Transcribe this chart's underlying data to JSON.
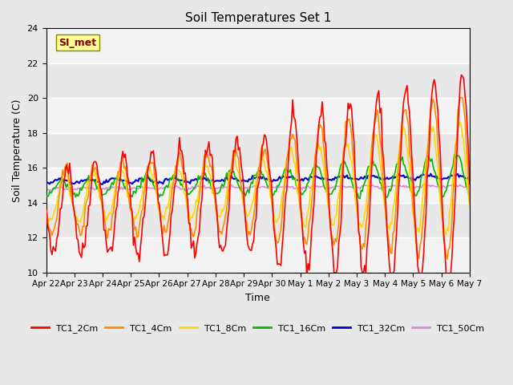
{
  "title": "Soil Temperatures Set 1",
  "xlabel": "Time",
  "ylabel": "Soil Temperature (C)",
  "ylim": [
    10,
    24
  ],
  "yticks": [
    10,
    12,
    14,
    16,
    18,
    20,
    22,
    24
  ],
  "background_color": "#e8e8e8",
  "plot_bg_color": "#e8e8e8",
  "annotation_text": "SI_met",
  "annotation_color": "#8B0000",
  "annotation_bg": "#FFFF99",
  "series_colors": {
    "TC1_2Cm": "#FF0000",
    "TC1_4Cm": "#FF8C00",
    "TC1_8Cm": "#FFD700",
    "TC1_16Cm": "#00BB00",
    "TC1_32Cm": "#0000CC",
    "TC1_50Cm": "#DD88DD"
  },
  "line_width": 1.2,
  "n_points": 360,
  "n_days": 15,
  "x_tick_labels": [
    "Apr 22",
    "Apr 23",
    "Apr 24",
    "Apr 25",
    "Apr 26",
    "Apr 27",
    "Apr 28",
    "Apr 29",
    "Apr 30",
    "May 1",
    "May 2",
    "May 3",
    "May 4",
    "May 5",
    "May 6",
    "May 7"
  ]
}
